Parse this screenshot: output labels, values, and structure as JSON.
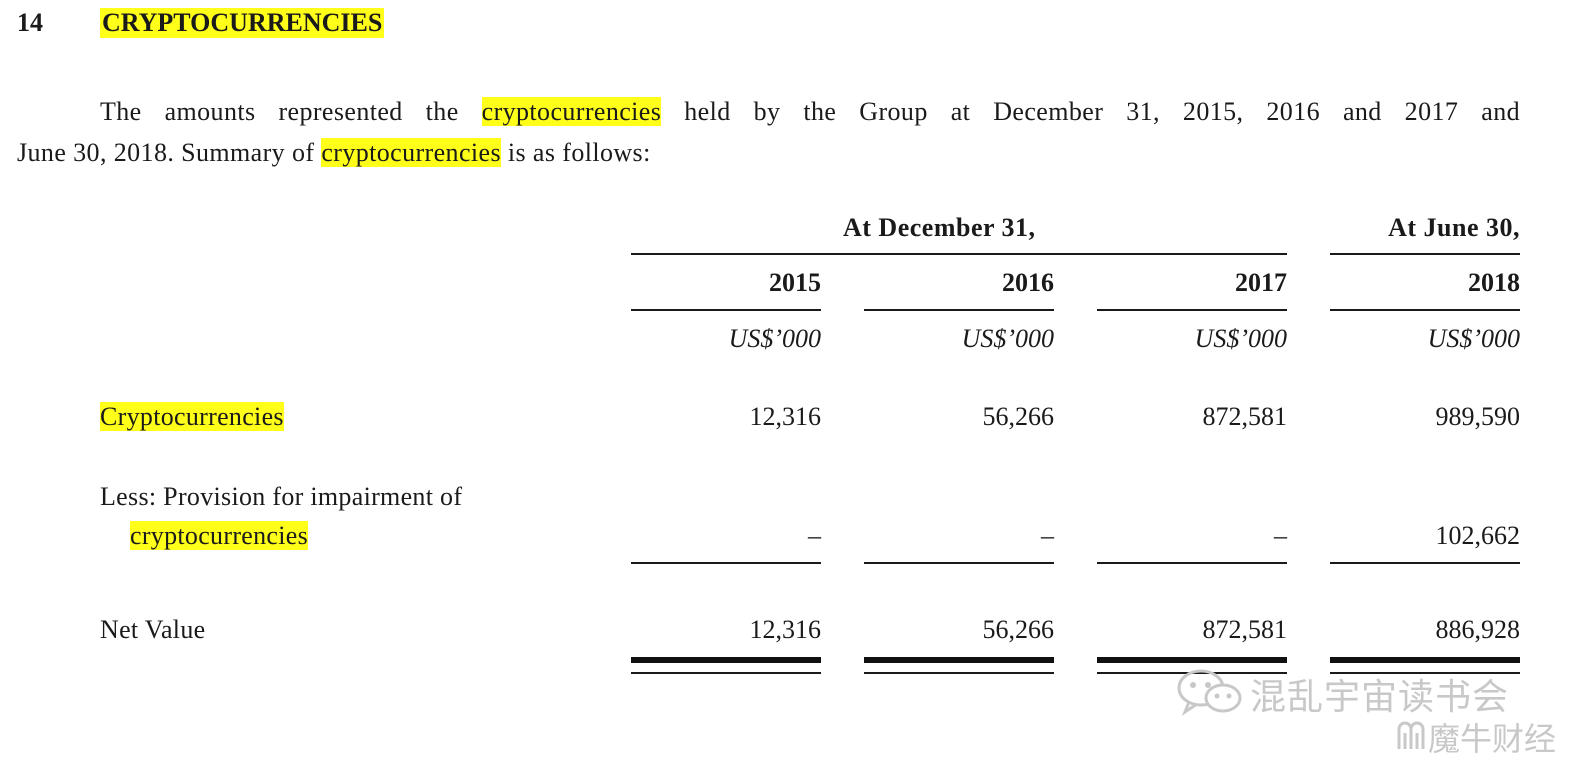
{
  "section": {
    "number": "14",
    "title": "CRYPTOCURRENCIES"
  },
  "paragraph": {
    "line1_pre": "The amounts represented the ",
    "line1_hl": "cryptocurrencies",
    "line1_post": " held by the Group at December 31, 2015, 2016 and 2017 and",
    "line2_pre": "June 30, 2018. Summary of ",
    "line2_hl": "cryptocurrencies",
    "line2_post": " is as follows:"
  },
  "table": {
    "group_headers": {
      "december": "At December 31,",
      "june": "At June 30,"
    },
    "years": [
      "2015",
      "2016",
      "2017",
      "2018"
    ],
    "units": [
      "US$’000",
      "US$’000",
      "US$’000",
      "US$’000"
    ],
    "rows": {
      "crypto": {
        "label": "Cryptocurrencies",
        "values": [
          "12,316",
          "56,266",
          "872,581",
          "989,590"
        ]
      },
      "provision": {
        "label_line1": "Less: Provision for impairment of",
        "label_line2": "cryptocurrencies",
        "values": [
          "–",
          "–",
          "–",
          "102,662"
        ]
      },
      "net": {
        "label": "Net Value",
        "values": [
          "12,316",
          "56,266",
          "872,581",
          "886,928"
        ]
      }
    }
  },
  "watermark": {
    "line1": "混乱宇宙读书会",
    "line2": "魔牛财经",
    "icon": "wechat-icon",
    "logo": "moniu-logo-icon"
  },
  "colors": {
    "highlight": "#ffff1a",
    "text": "#1a1a1a",
    "watermark": "#c8c8c8"
  }
}
